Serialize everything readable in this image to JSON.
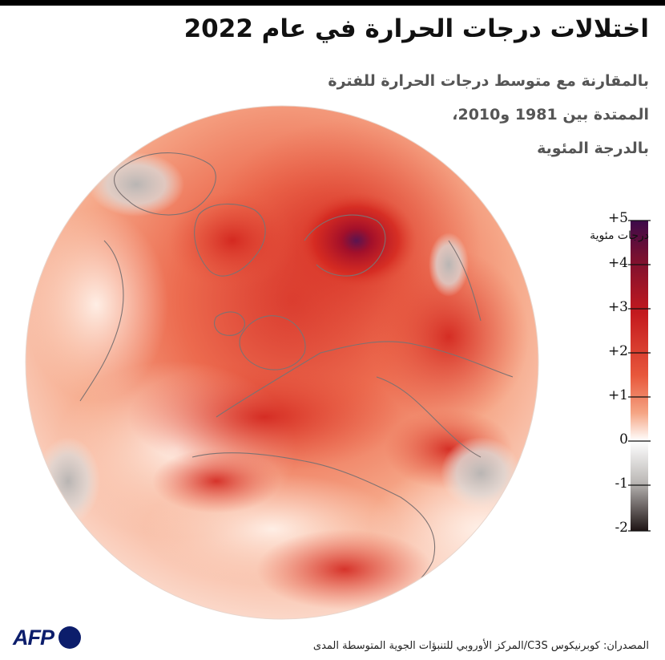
{
  "title": "اختلالات درجات الحرارة في عام 2022",
  "subtitle_lines": [
    "بالمقارنة مع متوسط درجات الحرارة للفترة",
    "الممتدة بين 1981 و2010،",
    "بالدرجة المئوية"
  ],
  "legend": {
    "unit": "درجات مئوية",
    "ticks": [
      "+5",
      "+4",
      "+3",
      "+2",
      "+1",
      "0",
      "-1",
      "-2"
    ],
    "colors": {
      "max": "#3d0a4a",
      "high": "#c41a1e",
      "mid": "#f4a07a",
      "zero": "#ffffff",
      "min": "#1e1414"
    }
  },
  "source": "المصدران: كوبرنيكوس C3S/المركز الأوروبي للتنبؤات الجوية المتوسطة المدى",
  "logo": {
    "text": "AFP"
  },
  "map": {
    "type": "temperature-anomaly-globe",
    "year": "2022",
    "range": [
      -2,
      5
    ]
  }
}
